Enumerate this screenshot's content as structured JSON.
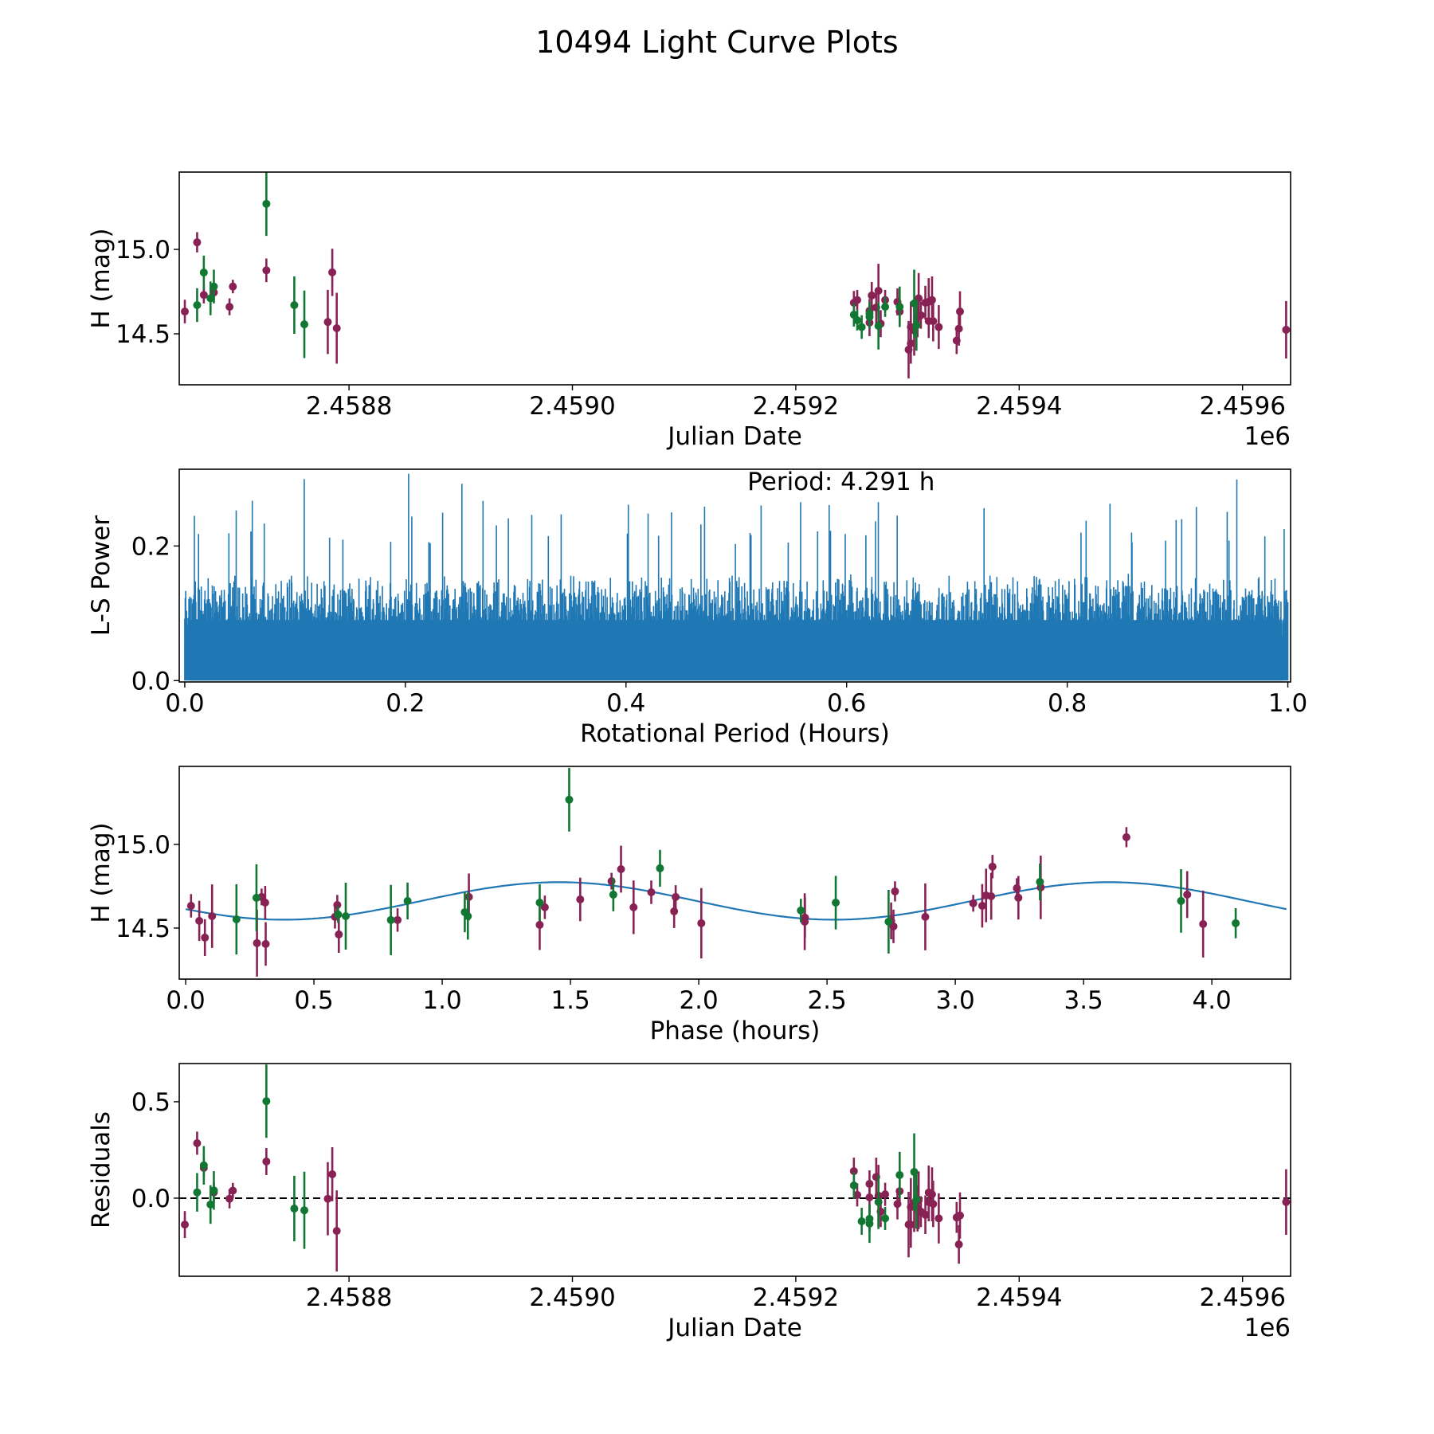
{
  "figure": {
    "title": "10494 Light Curve Plots"
  },
  "colors": {
    "series_a": "#882255",
    "series_b": "#117733",
    "periodogram": "#1f77b4",
    "fit": "#1f77b4",
    "zero_line": "#000000"
  },
  "chart_data": [
    {
      "id": "lightcurve",
      "type": "scatter",
      "title": "",
      "xlabel": "Julian Date",
      "ylabel": "H (mag)",
      "offset_label": "1e6",
      "xlim": [
        2458648,
        2459643
      ],
      "ylim": [
        14.198,
        15.458
      ],
      "xticks": [
        2458800,
        2459000,
        2459200,
        2459400,
        2459600
      ],
      "xtick_labels": [
        "2.4588",
        "2.4590",
        "2.4592",
        "2.4594",
        "2.4596"
      ],
      "yticks": [
        14.5,
        15.0
      ],
      "ytick_labels": [
        "14.5",
        "15.0"
      ],
      "grid": false,
      "series": [
        {
          "name": "magenta",
          "color": "#882255",
          "points": [
            [
              2458653,
              14.632,
              0.07
            ],
            [
              2458664,
              15.042,
              0.06
            ],
            [
              2458670,
              14.73,
              0.05
            ],
            [
              2458679,
              14.745,
              0.05
            ],
            [
              2458693,
              14.66,
              0.05
            ],
            [
              2458696,
              14.78,
              0.04
            ],
            [
              2458726,
              14.876,
              0.07
            ],
            [
              2458781,
              14.57,
              0.19
            ],
            [
              2458785,
              14.864,
              0.14
            ],
            [
              2458789,
              14.533,
              0.21
            ],
            [
              2459252,
              14.684,
              0.07
            ],
            [
              2459255,
              14.7,
              0.06
            ],
            [
              2459266,
              14.566,
              0.08
            ],
            [
              2459266,
              14.636,
              0.07
            ],
            [
              2459268,
              14.727,
              0.08
            ],
            [
              2459272,
              14.656,
              0.1
            ],
            [
              2459274,
              14.755,
              0.16
            ],
            [
              2459276,
              14.56,
              0.08
            ],
            [
              2459280,
              14.7,
              0.06
            ],
            [
              2459291,
              14.689,
              0.08
            ],
            [
              2459293,
              14.632,
              0.07
            ],
            [
              2459301,
              14.406,
              0.17
            ],
            [
              2459303,
              14.443,
              0.12
            ],
            [
              2459303,
              14.54,
              0.15
            ],
            [
              2459306,
              14.52,
              0.15
            ],
            [
              2459310,
              14.71,
              0.15
            ],
            [
              2459309,
              14.6,
              0.12
            ],
            [
              2459312,
              14.61,
              0.08
            ],
            [
              2459316,
              14.684,
              0.1
            ],
            [
              2459319,
              14.69,
              0.14
            ],
            [
              2459319,
              14.575,
              0.1
            ],
            [
              2459322,
              14.7,
              0.14
            ],
            [
              2459323,
              14.575,
              0.12
            ],
            [
              2459328,
              14.54,
              0.13
            ],
            [
              2459344,
              14.46,
              0.08
            ],
            [
              2459346,
              14.53,
              0.1
            ],
            [
              2459347,
              14.632,
              0.12
            ],
            [
              2459639,
              14.524,
              0.17
            ]
          ]
        },
        {
          "name": "green",
          "color": "#117733",
          "points": [
            [
              2458664,
              14.67,
              0.1
            ],
            [
              2458670,
              14.863,
              0.1
            ],
            [
              2458676,
              14.71,
              0.1
            ],
            [
              2458679,
              14.78,
              0.1
            ],
            [
              2458726,
              15.27,
              0.19
            ],
            [
              2458751,
              14.67,
              0.17
            ],
            [
              2458760,
              14.556,
              0.2
            ],
            [
              2459252,
              14.613,
              0.07
            ],
            [
              2459255,
              14.58,
              0.06
            ],
            [
              2459259,
              14.54,
              0.07
            ],
            [
              2459266,
              14.6,
              0.07
            ],
            [
              2459266,
              14.62,
              0.07
            ],
            [
              2459274,
              14.547,
              0.14
            ],
            [
              2459280,
              14.66,
              0.06
            ],
            [
              2459293,
              14.66,
              0.12
            ],
            [
              2459306,
              14.68,
              0.2
            ],
            [
              2459308,
              14.55,
              0.15
            ]
          ]
        }
      ]
    },
    {
      "id": "periodogram",
      "type": "line",
      "xlabel": "Rotational Period (Hours)",
      "ylabel": "L-S Power",
      "xlim": [
        -0.005,
        1.0025
      ],
      "ylim": [
        -0.002,
        0.314
      ],
      "xticks": [
        0.0,
        0.2,
        0.4,
        0.6,
        0.8,
        1.0
      ],
      "xtick_labels": [
        "0.0",
        "0.2",
        "0.4",
        "0.6",
        "0.8",
        "1.0"
      ],
      "yticks": [
        0.0,
        0.2
      ],
      "ytick_labels": [
        "0.0",
        "0.2"
      ],
      "annotation": "Period: 4.291 h",
      "grid": false,
      "series": [
        {
          "name": "L-S power",
          "color": "#1f77b4",
          "description": "dense noisy periodogram, envelope ~0.15-0.25 with spikes up to ~0.31",
          "x_range": [
            0.0,
            1.0
          ],
          "typical_peak": 0.18,
          "max_peak": 0.31
        }
      ]
    },
    {
      "id": "phased",
      "type": "scatter",
      "xlabel": "Phase (hours)",
      "ylabel": "H (mag)",
      "xlim": [
        -0.025,
        4.307
      ],
      "ylim": [
        14.195,
        15.466
      ],
      "xticks": [
        0.0,
        0.5,
        1.0,
        1.5,
        2.0,
        2.5,
        3.0,
        3.5,
        4.0
      ],
      "xtick_labels": [
        "0.0",
        "0.5",
        "1.0",
        "1.5",
        "2.0",
        "2.5",
        "3.0",
        "3.5",
        "4.0"
      ],
      "yticks": [
        14.5,
        15.0
      ],
      "ytick_labels": [
        "14.5",
        "15.0"
      ],
      "grid": false,
      "fit": {
        "type": "sinusoid",
        "mean": 14.662,
        "amplitude": 0.112,
        "period": 2.1455,
        "peak_phase": 1.455,
        "x_range": [
          0.0,
          4.291
        ]
      },
      "series": [
        {
          "name": "magenta",
          "color": "#882255",
          "points": [
            [
              0.021,
              14.633,
              0.07
            ],
            [
              0.053,
              14.543,
              0.12
            ],
            [
              0.075,
              14.443,
              0.11
            ],
            [
              0.103,
              14.571,
              0.19
            ],
            [
              0.278,
              14.41,
              0.2
            ],
            [
              0.296,
              14.686,
              0.05
            ],
            [
              0.31,
              14.652,
              0.1
            ],
            [
              0.312,
              14.405,
              0.13
            ],
            [
              0.582,
              14.567,
              0.07
            ],
            [
              0.591,
              14.638,
              0.06
            ],
            [
              0.597,
              14.462,
              0.11
            ],
            [
              0.826,
              14.548,
              0.07
            ],
            [
              1.104,
              14.686,
              0.14
            ],
            [
              1.38,
              14.519,
              0.15
            ],
            [
              1.4,
              14.624,
              0.07
            ],
            [
              1.538,
              14.671,
              0.13
            ],
            [
              1.66,
              14.78,
              0.05
            ],
            [
              1.697,
              14.852,
              0.14
            ],
            [
              1.746,
              14.624,
              0.16
            ],
            [
              1.815,
              14.714,
              0.07
            ],
            [
              1.91,
              14.686,
              0.07
            ],
            [
              1.904,
              14.6,
              0.1
            ],
            [
              2.01,
              14.529,
              0.21
            ],
            [
              2.414,
              14.562,
              0.12
            ],
            [
              2.413,
              14.538,
              0.17
            ],
            [
              2.75,
              14.543,
              0.11
            ],
            [
              2.759,
              14.51,
              0.1
            ],
            [
              2.765,
              14.719,
              0.06
            ],
            [
              2.883,
              14.567,
              0.2
            ],
            [
              3.07,
              14.648,
              0.05
            ],
            [
              3.105,
              14.633,
              0.13
            ],
            [
              3.12,
              14.695,
              0.16
            ],
            [
              3.14,
              14.69,
              0.14
            ],
            [
              3.145,
              14.867,
              0.07
            ],
            [
              3.24,
              14.738,
              0.06
            ],
            [
              3.246,
              14.681,
              0.13
            ],
            [
              3.333,
              14.743,
              0.19
            ],
            [
              3.667,
              15.043,
              0.06
            ],
            [
              3.904,
              14.7,
              0.14
            ],
            [
              3.966,
              14.524,
              0.2
            ]
          ]
        },
        {
          "name": "green",
          "color": "#117733",
          "points": [
            [
              0.198,
              14.552,
              0.21
            ],
            [
              0.276,
              14.681,
              0.2
            ],
            [
              0.594,
              14.581,
              0.05
            ],
            [
              0.624,
              14.571,
              0.2
            ],
            [
              0.8,
              14.548,
              0.21
            ],
            [
              0.865,
              14.662,
              0.11
            ],
            [
              1.088,
              14.595,
              0.12
            ],
            [
              1.1,
              14.571,
              0.14
            ],
            [
              1.38,
              14.652,
              0.11
            ],
            [
              1.495,
              15.267,
              0.19
            ],
            [
              1.667,
              14.7,
              0.1
            ],
            [
              1.849,
              14.857,
              0.11
            ],
            [
              2.398,
              14.605,
              0.07
            ],
            [
              2.534,
              14.652,
              0.16
            ],
            [
              2.74,
              14.538,
              0.19
            ],
            [
              3.33,
              14.776,
              0.11
            ],
            [
              3.88,
              14.662,
              0.19
            ],
            [
              4.093,
              14.529,
              0.09
            ]
          ]
        }
      ]
    },
    {
      "id": "residuals",
      "type": "scatter",
      "xlabel": "Julian Date",
      "ylabel": "Residuals",
      "offset_label": "1e6",
      "xlim": [
        2458648,
        2459643
      ],
      "ylim": [
        -0.405,
        0.698
      ],
      "xticks": [
        2458800,
        2459000,
        2459200,
        2459400,
        2459600
      ],
      "xtick_labels": [
        "2.4588",
        "2.4590",
        "2.4592",
        "2.4594",
        "2.4596"
      ],
      "yticks": [
        0.0,
        0.5
      ],
      "ytick_labels": [
        "0.0",
        "0.5"
      ],
      "reference_line": 0.0,
      "grid": false,
      "series": [
        {
          "name": "magenta",
          "color": "#882255",
          "points": [
            [
              2458653,
              -0.137,
              0.07
            ],
            [
              2458664,
              0.285,
              0.06
            ],
            [
              2458670,
              0.157,
              0.05
            ],
            [
              2458679,
              0.03,
              0.05
            ],
            [
              2458693,
              -0.003,
              0.05
            ],
            [
              2458696,
              0.039,
              0.04
            ],
            [
              2458726,
              0.19,
              0.07
            ],
            [
              2458781,
              -0.003,
              0.19
            ],
            [
              2458785,
              0.124,
              0.14
            ],
            [
              2458789,
              -0.17,
              0.21
            ],
            [
              2459252,
              0.14,
              0.07
            ],
            [
              2459255,
              0.017,
              0.06
            ],
            [
              2459266,
              0.074,
              0.07
            ],
            [
              2459266,
              0.004,
              0.08
            ],
            [
              2459272,
              0.11,
              0.1
            ],
            [
              2459274,
              0.013,
              0.16
            ],
            [
              2459276,
              -0.07,
              0.08
            ],
            [
              2459280,
              0.02,
              0.06
            ],
            [
              2459291,
              -0.03,
              0.08
            ],
            [
              2459293,
              0.036,
              0.07
            ],
            [
              2459301,
              -0.137,
              0.17
            ],
            [
              2459303,
              -0.137,
              0.12
            ],
            [
              2459303,
              -0.046,
              0.15
            ],
            [
              2459306,
              -0.025,
              0.15
            ],
            [
              2459310,
              -0.011,
              0.15
            ],
            [
              2459309,
              -0.053,
              0.12
            ],
            [
              2459312,
              -0.07,
              0.08
            ],
            [
              2459316,
              -0.086,
              0.1
            ],
            [
              2459319,
              0.029,
              0.14
            ],
            [
              2459319,
              -0.02,
              0.1
            ],
            [
              2459322,
              0.02,
              0.14
            ],
            [
              2459323,
              -0.03,
              0.12
            ],
            [
              2459328,
              -0.105,
              0.13
            ],
            [
              2459344,
              -0.1,
              0.08
            ],
            [
              2459346,
              -0.24,
              0.1
            ],
            [
              2459347,
              -0.09,
              0.12
            ],
            [
              2459639,
              -0.02,
              0.17
            ]
          ]
        },
        {
          "name": "green",
          "color": "#117733",
          "points": [
            [
              2458664,
              0.03,
              0.1
            ],
            [
              2458670,
              0.17,
              0.1
            ],
            [
              2458676,
              -0.033,
              0.1
            ],
            [
              2458679,
              0.04,
              0.1
            ],
            [
              2458726,
              0.503,
              0.19
            ],
            [
              2458751,
              -0.054,
              0.17
            ],
            [
              2458760,
              -0.063,
              0.2
            ],
            [
              2459252,
              0.066,
              0.07
            ],
            [
              2459259,
              -0.12,
              0.07
            ],
            [
              2459266,
              -0.107,
              0.07
            ],
            [
              2459266,
              -0.132,
              0.1
            ],
            [
              2459274,
              -0.02,
              0.14
            ],
            [
              2459280,
              -0.105,
              0.06
            ],
            [
              2459293,
              0.12,
              0.12
            ],
            [
              2459306,
              0.136,
              0.2
            ],
            [
              2459308,
              -0.008,
              0.15
            ]
          ]
        }
      ]
    }
  ]
}
